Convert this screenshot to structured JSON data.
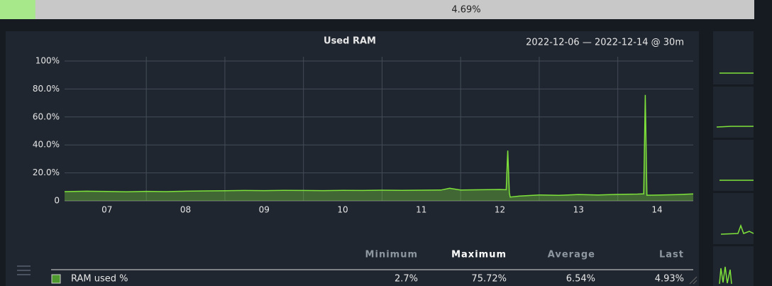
{
  "top_bar": {
    "value": 4.69,
    "label": "4.69%"
  },
  "chart_data": {
    "type": "area",
    "title": "Used RAM",
    "subtitle": "2022-12-06 — 2022-12-14 @ 30m",
    "x": [
      6.96,
      7.25,
      7.5,
      7.75,
      8,
      8.25,
      8.5,
      8.75,
      9,
      9.25,
      9.5,
      9.75,
      10,
      10.25,
      10.5,
      10.75,
      11,
      11.25,
      11.5,
      11.75,
      11.86,
      12,
      12.25,
      12.5,
      12.58,
      12.6,
      12.62,
      12.63,
      12.75,
      13,
      13.25,
      13.5,
      13.75,
      14,
      14.25,
      14.33,
      14.35,
      14.37,
      14.5,
      14.75,
      14.96
    ],
    "series": [
      {
        "name": "RAM used %",
        "color": "#7ee23b",
        "values": [
          6.6,
          6.9,
          6.7,
          6.5,
          6.8,
          6.6,
          6.9,
          7.1,
          7.2,
          7.4,
          7.3,
          7.5,
          7.4,
          7.3,
          7.5,
          7.4,
          7.6,
          7.5,
          7.6,
          7.7,
          9.0,
          7.7,
          7.9,
          8.1,
          7.9,
          36.0,
          6.0,
          2.7,
          3.4,
          4.2,
          3.9,
          4.5,
          4.2,
          4.6,
          4.8,
          5.0,
          75.72,
          4.0,
          4.1,
          4.4,
          4.93
        ]
      }
    ],
    "xlim": [
      6.96,
      14.96
    ],
    "xticks": [
      {
        "value": 7.5,
        "label": "07"
      },
      {
        "value": 8.5,
        "label": "08"
      },
      {
        "value": 9.5,
        "label": "09"
      },
      {
        "value": 10.5,
        "label": "10"
      },
      {
        "value": 11.5,
        "label": "11"
      },
      {
        "value": 12.5,
        "label": "12"
      },
      {
        "value": 13.5,
        "label": "13"
      },
      {
        "value": 14.5,
        "label": "14"
      }
    ],
    "ylim": [
      0,
      100
    ],
    "yticks": [
      0,
      {
        "value": 20,
        "label": "20.0%"
      },
      {
        "value": 40,
        "label": "40.0%"
      },
      {
        "value": 60,
        "label": "60.0%"
      },
      {
        "value": 80,
        "label": "80.0%"
      },
      {
        "value": 100,
        "label": "100%"
      }
    ],
    "grid": true
  },
  "stats": {
    "headers": [
      "Minimum",
      "Maximum",
      "Average",
      "Last"
    ],
    "rows": [
      {
        "name": "RAM used %",
        "color": "#4f9a2f",
        "values": [
          "2.7%",
          "75.72%",
          "6.54%",
          "4.93%"
        ]
      }
    ]
  }
}
